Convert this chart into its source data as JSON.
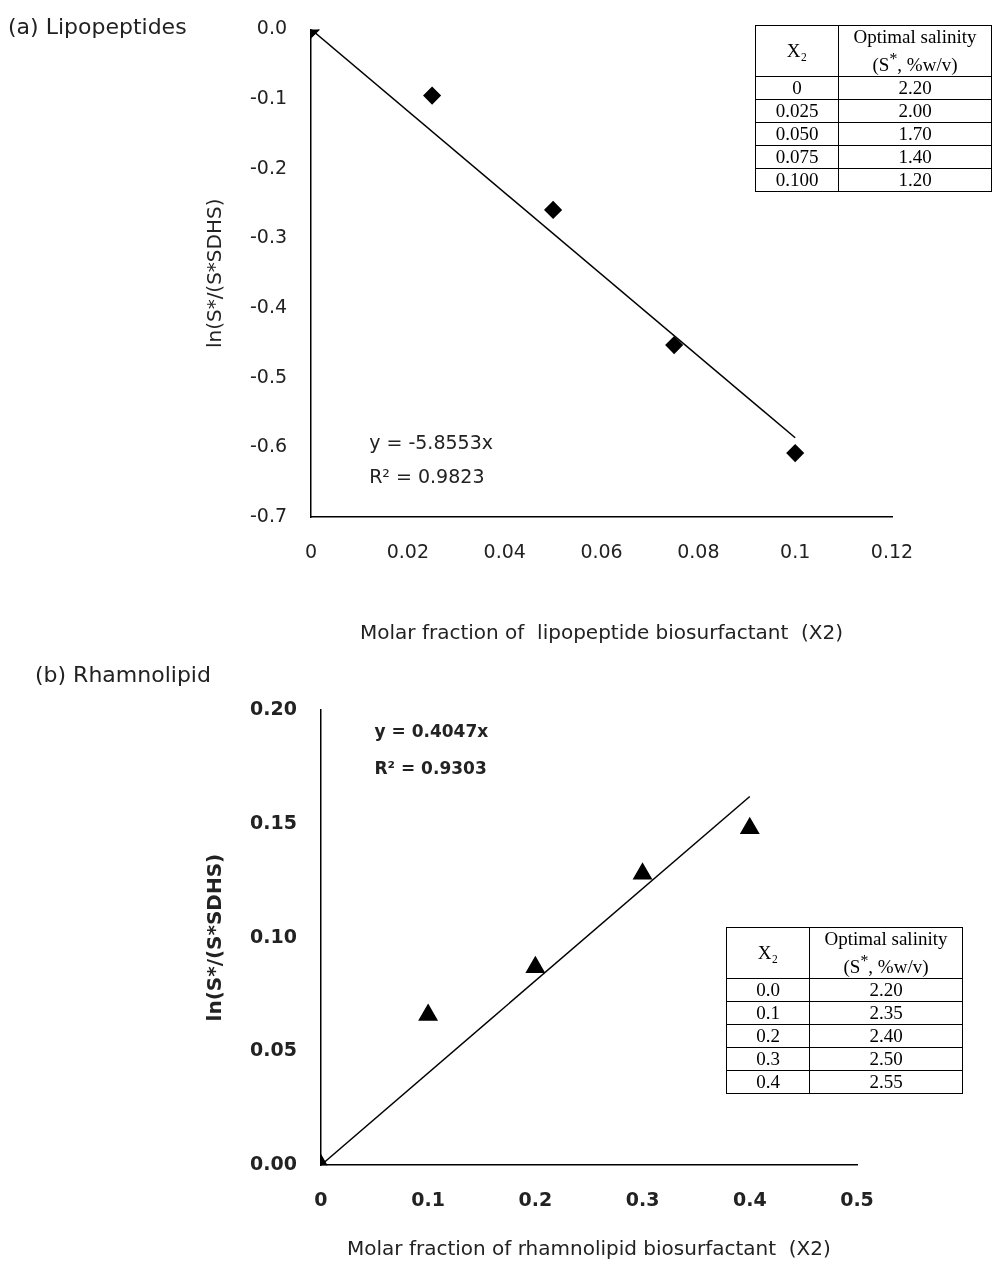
{
  "chart_data": [
    {
      "type": "scatter",
      "title": "(a) Lipopeptides",
      "xlabel": "Molar fraction of  lipopeptide biosurfactant  (X2)",
      "ylabel": "ln(S*/(S*SDHS)",
      "x": [
        0,
        0.025,
        0.05,
        0.075,
        0.1
      ],
      "series": [
        {
          "type": "scatter",
          "color": "#000000",
          "marker": "diamond",
          "values": [
            0,
            -0.095,
            -0.259,
            -0.453,
            -0.608
          ]
        },
        {
          "type": "line",
          "color": "#000000",
          "marker": "none",
          "x": [
            0,
            0.1
          ],
          "values": [
            0,
            -0.586
          ]
        }
      ],
      "xlim": [
        0,
        0.12
      ],
      "xticks": [
        0,
        0.02,
        0.04,
        0.06,
        0.08,
        0.1,
        0.12
      ],
      "ylim": [
        -0.7,
        0
      ],
      "yticks": [
        -0.7,
        -0.6,
        -0.5,
        -0.4,
        -0.3,
        -0.2,
        -0.1,
        {
          "value": 0,
          "label": "0.0"
        }
      ],
      "grid": false,
      "legend": false,
      "annotations": [
        "y = -5.8553x",
        "R² = 0.9823",
        "X₂",
        "Optimal salinity (S$^{*}$, %w/v)",
        "0",
        "2.20",
        "0.025",
        "2.00",
        "0.050",
        "1.70",
        "0.075",
        "1.40",
        "0.100",
        "1.20"
      ]
    },
    {
      "type": "scatter",
      "title": "(b) Rhamnolipid",
      "xlabel": "Molar fraction of rhamnolipid biosurfactant  (X2)",
      "ylabel": "ln(S*/(S*SDHS)",
      "x": [
        0,
        0.1,
        0.2,
        0.3,
        0.4
      ],
      "series": [
        {
          "type": "scatter",
          "color": "#000000",
          "marker": "triangle",
          "values": [
            0,
            0.066,
            0.087,
            0.128,
            0.148
          ]
        },
        {
          "type": "line",
          "color": "#000000",
          "marker": "none",
          "x": [
            0,
            0.4
          ],
          "values": [
            0,
            0.162
          ]
        }
      ],
      "xlim": [
        0,
        0.5
      ],
      "xticks": [
        0,
        0.1,
        0.2,
        0.3,
        0.4,
        0.5
      ],
      "ylim": [
        0,
        0.2
      ],
      "yticks": [
        {
          "value": 0,
          "label": "0.00"
        },
        0.05,
        {
          "value": 0.1,
          "label": "0.10"
        },
        0.15,
        {
          "value": 0.2,
          "label": "0.20"
        }
      ],
      "grid": false,
      "legend": false,
      "annotations": [
        "y = 0.4047x",
        "R² = 0.9303",
        "X₂",
        "Optimal salinity (S$^{*}$, %w/v)",
        "0.0",
        "2.20",
        "0.1",
        "2.35",
        "0.2",
        "2.40",
        "0.3",
        "2.50",
        "0.4",
        "2.55"
      ]
    }
  ]
}
